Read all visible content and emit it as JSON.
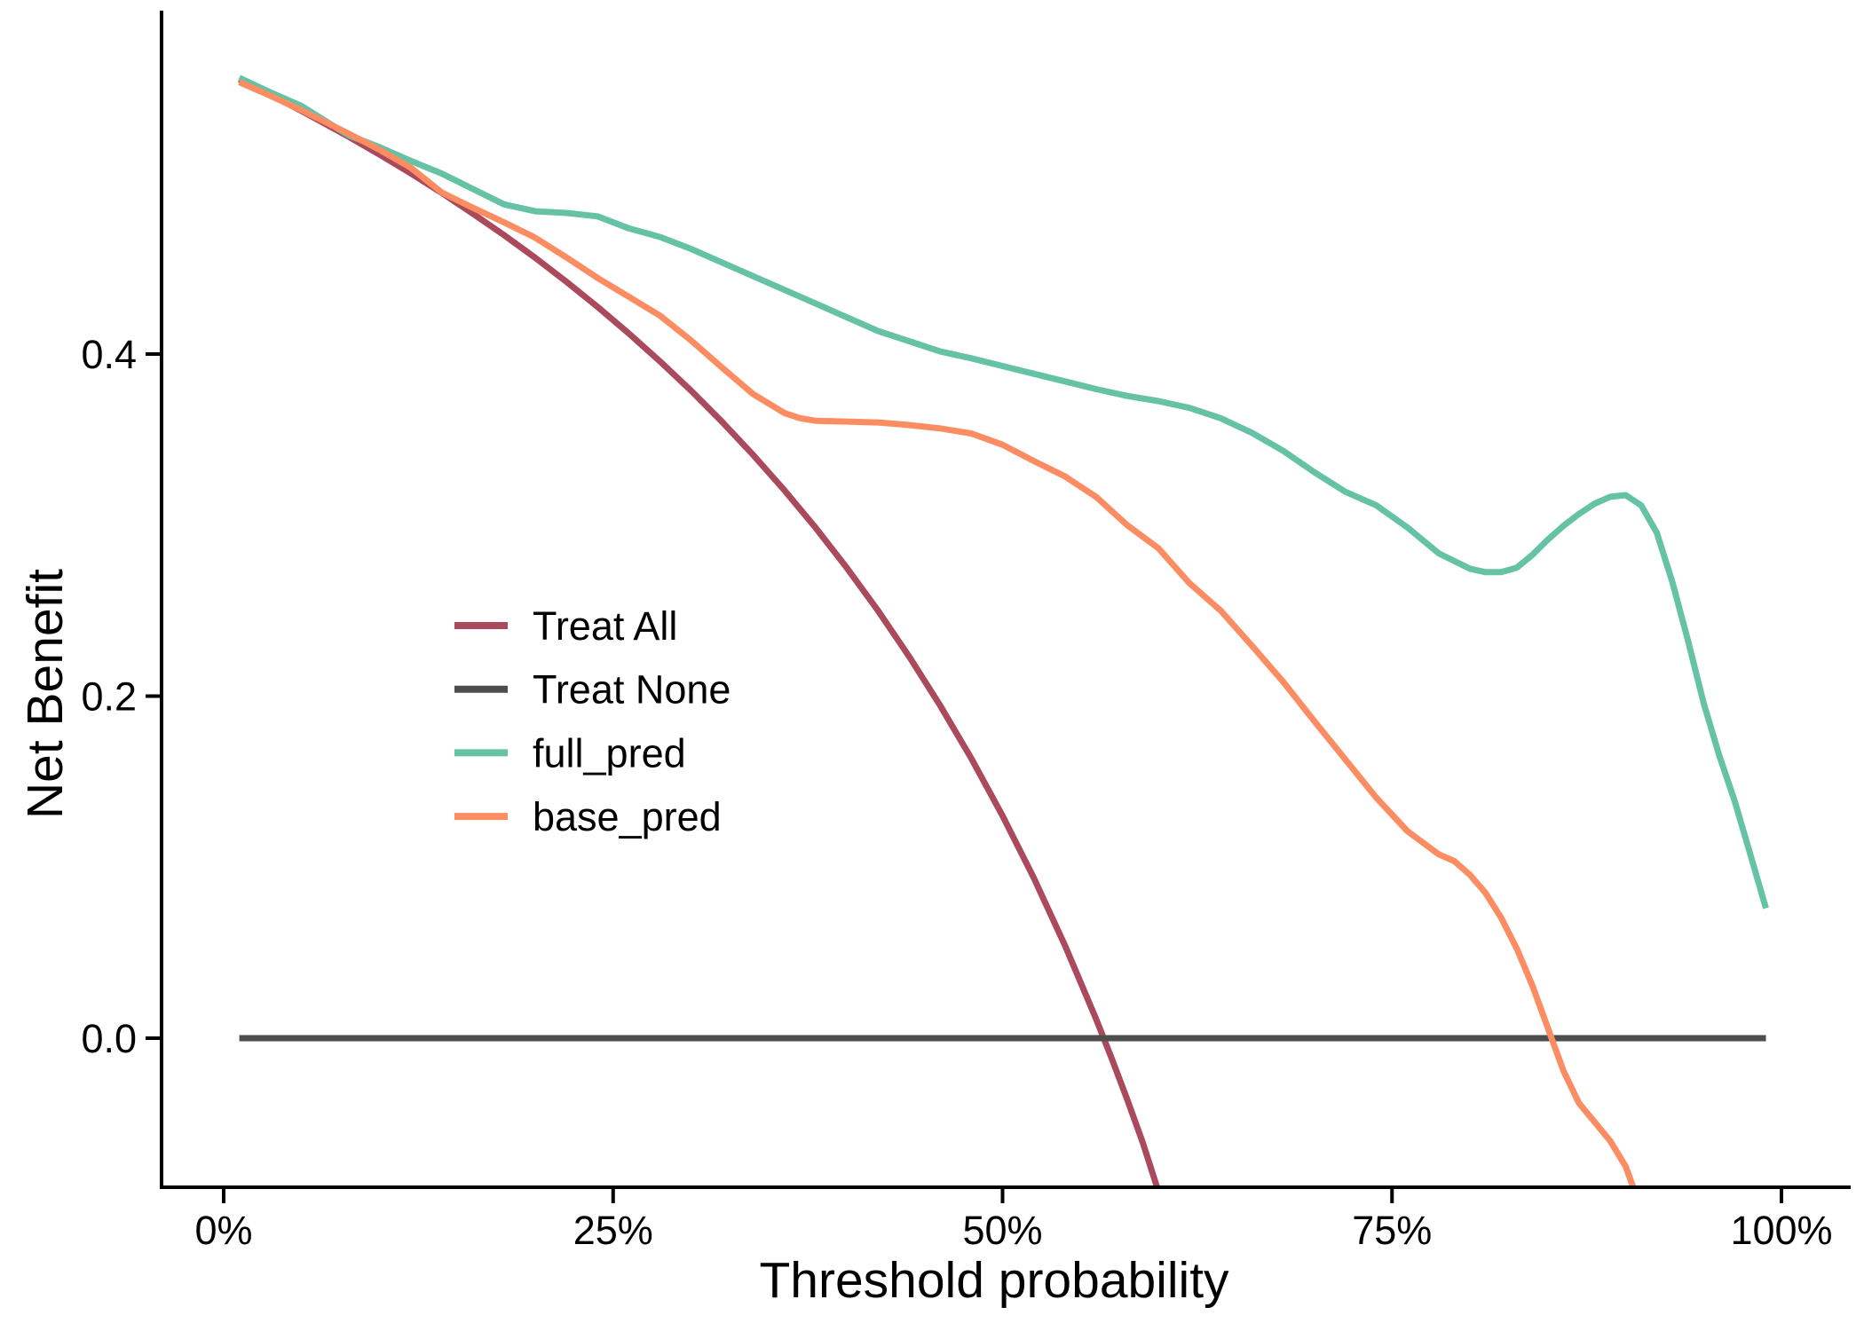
{
  "chart_data": {
    "type": "line",
    "title": "",
    "xlabel": "Threshold probability",
    "ylabel": "Net Benefit",
    "x_axis": {
      "ticks": [
        {
          "label": "0%",
          "value": 0
        },
        {
          "label": "25%",
          "value": 25
        },
        {
          "label": "50%",
          "value": 50
        },
        {
          "label": "75%",
          "value": 75
        },
        {
          "label": "100%",
          "value": 100
        }
      ],
      "range_pct": [
        -4,
        104.4
      ],
      "unit": "threshold probability (%)"
    },
    "y_axis": {
      "ticks": [
        {
          "label": "0.0",
          "value": 0.0
        },
        {
          "label": "0.2",
          "value": 0.2
        },
        {
          "label": "0.4",
          "value": 0.4
        }
      ],
      "range": [
        -0.087,
        0.599
      ],
      "unit": "net benefit"
    },
    "grid": false,
    "legend_position": "inside-left-middle",
    "series": [
      {
        "name": "Treat All",
        "color": "#AB4A5C",
        "points": [
          [
            1,
            0.5606
          ],
          [
            3,
            0.5515
          ],
          [
            5,
            0.5421
          ],
          [
            8,
            0.5272
          ],
          [
            10,
            0.5167
          ],
          [
            12,
            0.5057
          ],
          [
            14,
            0.4942
          ],
          [
            16,
            0.4821
          ],
          [
            18,
            0.4695
          ],
          [
            20,
            0.4563
          ],
          [
            22,
            0.4423
          ],
          [
            24,
            0.4276
          ],
          [
            26,
            0.4121
          ],
          [
            28,
            0.3958
          ],
          [
            30,
            0.3786
          ],
          [
            32,
            0.3603
          ],
          [
            34,
            0.3409
          ],
          [
            36,
            0.3203
          ],
          [
            38,
            0.2984
          ],
          [
            40,
            0.275
          ],
          [
            42,
            0.25
          ],
          [
            44,
            0.2232
          ],
          [
            46,
            0.1944
          ],
          [
            48,
            0.1635
          ],
          [
            50,
            0.13
          ],
          [
            52,
            0.0938
          ],
          [
            54,
            0.0543
          ],
          [
            56,
            0.0113
          ],
          [
            57,
            -0.0116
          ],
          [
            58,
            -0.0358
          ],
          [
            59,
            -0.0611
          ],
          [
            59.9,
            -0.0866
          ],
          [
            60.3,
            -0.098
          ]
        ]
      },
      {
        "name": "Treat None",
        "color": "#4D4D4D",
        "points": [
          [
            1,
            0
          ],
          [
            99,
            0
          ]
        ]
      },
      {
        "name": "full_pred",
        "color": "#66C2A5",
        "points": [
          [
            1,
            0.5615
          ],
          [
            3,
            0.553
          ],
          [
            5,
            0.545
          ],
          [
            8,
            0.528
          ],
          [
            10,
            0.521
          ],
          [
            12,
            0.513
          ],
          [
            14,
            0.5055
          ],
          [
            16,
            0.4965
          ],
          [
            18,
            0.4875
          ],
          [
            20,
            0.4835
          ],
          [
            22,
            0.4825
          ],
          [
            24,
            0.4805
          ],
          [
            26,
            0.4735
          ],
          [
            28,
            0.4685
          ],
          [
            30,
            0.4615
          ],
          [
            32,
            0.4535
          ],
          [
            34,
            0.4455
          ],
          [
            36,
            0.4375
          ],
          [
            38,
            0.4295
          ],
          [
            40,
            0.4215
          ],
          [
            42,
            0.4135
          ],
          [
            44,
            0.4075
          ],
          [
            46,
            0.4015
          ],
          [
            48,
            0.3975
          ],
          [
            50,
            0.393
          ],
          [
            52,
            0.3885
          ],
          [
            54,
            0.384
          ],
          [
            56,
            0.3795
          ],
          [
            58,
            0.3755
          ],
          [
            60,
            0.3725
          ],
          [
            62,
            0.3685
          ],
          [
            64,
            0.3625
          ],
          [
            66,
            0.354
          ],
          [
            68,
            0.3435
          ],
          [
            70,
            0.331
          ],
          [
            72,
            0.3195
          ],
          [
            74,
            0.3115
          ],
          [
            76,
            0.2985
          ],
          [
            78,
            0.2835
          ],
          [
            80,
            0.2745
          ],
          [
            81,
            0.2725
          ],
          [
            82,
            0.2725
          ],
          [
            83,
            0.275
          ],
          [
            84,
            0.2825
          ],
          [
            85,
            0.2915
          ],
          [
            86,
            0.2995
          ],
          [
            87,
            0.3065
          ],
          [
            88,
            0.3125
          ],
          [
            89,
            0.3165
          ],
          [
            90,
            0.3175
          ],
          [
            91,
            0.3115
          ],
          [
            92,
            0.2955
          ],
          [
            93,
            0.2665
          ],
          [
            94,
            0.2325
          ],
          [
            95,
            0.196
          ],
          [
            96,
            0.1655
          ],
          [
            97,
            0.1385
          ],
          [
            98,
            0.1075
          ],
          [
            99,
            0.076
          ]
        ]
      },
      {
        "name": "base_pred",
        "color": "#FC8D62",
        "points": [
          [
            1,
            0.559
          ],
          [
            3,
            0.551
          ],
          [
            5,
            0.5425
          ],
          [
            8,
            0.529
          ],
          [
            10,
            0.5195
          ],
          [
            12,
            0.509
          ],
          [
            14,
            0.4945
          ],
          [
            16,
            0.4855
          ],
          [
            18,
            0.477
          ],
          [
            20,
            0.468
          ],
          [
            22,
            0.4565
          ],
          [
            24,
            0.4445
          ],
          [
            26,
            0.4335
          ],
          [
            28,
            0.4225
          ],
          [
            30,
            0.408
          ],
          [
            32,
            0.392
          ],
          [
            34,
            0.3765
          ],
          [
            36,
            0.3655
          ],
          [
            37,
            0.3625
          ],
          [
            38,
            0.361
          ],
          [
            40,
            0.3605
          ],
          [
            42,
            0.36
          ],
          [
            44,
            0.3585
          ],
          [
            46,
            0.3565
          ],
          [
            48,
            0.3535
          ],
          [
            50,
            0.347
          ],
          [
            52,
            0.3375
          ],
          [
            54,
            0.3285
          ],
          [
            56,
            0.3165
          ],
          [
            58,
            0.3
          ],
          [
            60,
            0.2865
          ],
          [
            62,
            0.266
          ],
          [
            64,
            0.25
          ],
          [
            66,
            0.2295
          ],
          [
            68,
            0.2085
          ],
          [
            70,
            0.1855
          ],
          [
            72,
            0.163
          ],
          [
            74,
            0.1405
          ],
          [
            76,
            0.121
          ],
          [
            78,
            0.1075
          ],
          [
            79,
            0.1035
          ],
          [
            80,
            0.0955
          ],
          [
            81,
            0.085
          ],
          [
            82,
            0.0705
          ],
          [
            83,
            0.0525
          ],
          [
            84,
            0.031
          ],
          [
            85,
            0.006
          ],
          [
            86,
            -0.019
          ],
          [
            87,
            -0.038
          ],
          [
            88,
            -0.049
          ],
          [
            89,
            -0.06
          ],
          [
            90,
            -0.075
          ],
          [
            90.8,
            -0.095
          ]
        ]
      }
    ]
  },
  "colors": {
    "background": "#FFFFFF",
    "axis": "#000000",
    "text": "#000000"
  }
}
